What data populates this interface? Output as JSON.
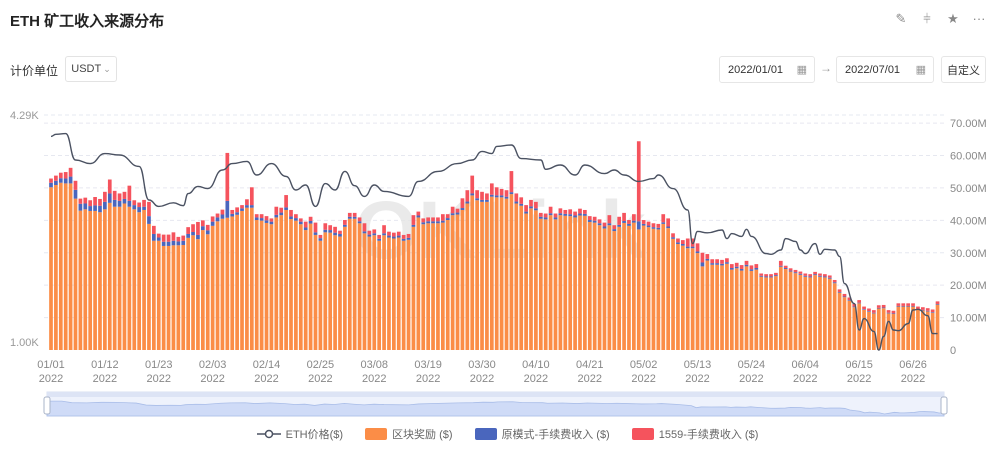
{
  "header": {
    "title": "ETH 矿工收入来源分布",
    "icons": [
      "edit-icon",
      "compare-icon",
      "star-icon",
      "more-icon"
    ]
  },
  "controls": {
    "unit_label": "计价单位",
    "unit_value": "USDT",
    "start_date": "2022/01/01",
    "end_date": "2022/07/01",
    "arrow": "→",
    "custom_label": "自定义"
  },
  "watermark": "OKLink",
  "colors": {
    "block_reward": "#fb8d47",
    "legacy_fee": "#4a66bd",
    "eip1559_fee": "#f5535d",
    "price_line": "#4b5262"
  },
  "chart_data": {
    "type": "bar",
    "stacked": true,
    "start_date": "2022-01-01",
    "left_axis": {
      "min": 1000,
      "max": 4290,
      "tick_labels": [
        "4.29K",
        "1.00K"
      ]
    },
    "right_axis": {
      "min": 0,
      "max": 70000000,
      "tick_labels": [
        "0",
        "10.00M",
        "20.00M",
        "30.00M",
        "40.00M",
        "50.00M",
        "60.00M",
        "70.00M"
      ]
    },
    "x_tick_labels": [
      {
        "md": "01/01",
        "y": "2022"
      },
      {
        "md": "01/12",
        "y": "2022"
      },
      {
        "md": "01/23",
        "y": "2022"
      },
      {
        "md": "02/03",
        "y": "2022"
      },
      {
        "md": "02/14",
        "y": "2022"
      },
      {
        "md": "02/25",
        "y": "2022"
      },
      {
        "md": "03/08",
        "y": "2022"
      },
      {
        "md": "03/19",
        "y": "2022"
      },
      {
        "md": "03/30",
        "y": "2022"
      },
      {
        "md": "04/10",
        "y": "2022"
      },
      {
        "md": "04/21",
        "y": "2022"
      },
      {
        "md": "05/02",
        "y": "2022"
      },
      {
        "md": "05/13",
        "y": "2022"
      },
      {
        "md": "05/24",
        "y": "2022"
      },
      {
        "md": "06/04",
        "y": "2022"
      },
      {
        "md": "06/15",
        "y": "2022"
      },
      {
        "md": "06/26",
        "y": "2022"
      }
    ],
    "grid": true,
    "legend_position": "bottom",
    "value_unit": "M USD",
    "series": [
      {
        "name": "区块奖励 ($)",
        "axis": "right",
        "values": [
          50.2,
          50.9,
          51.6,
          51.4,
          51.4,
          46.7,
          43.0,
          43.4,
          42.9,
          42.9,
          42.5,
          43.4,
          45.4,
          44.2,
          44.2,
          45.2,
          44.2,
          43.4,
          42.5,
          43.2,
          38.9,
          33.7,
          33.7,
          32.1,
          32.1,
          32.3,
          32.3,
          32.4,
          34.6,
          35.4,
          34.2,
          37.0,
          35.7,
          38.3,
          39.7,
          40.5,
          40.8,
          41.2,
          41.7,
          42.9,
          43.9,
          43.9,
          40.1,
          39.9,
          39.2,
          38.8,
          40.9,
          41.6,
          43.2,
          40.4,
          39.9,
          38.8,
          37.0,
          39.0,
          35.5,
          33.7,
          36.3,
          36.2,
          35.4,
          35.0,
          38.0,
          40.5,
          40.5,
          39.1,
          36.0,
          35.0,
          35.4,
          33.7,
          35.4,
          34.7,
          34.4,
          34.7,
          33.7,
          34.0,
          38.0,
          40.9,
          38.8,
          39.1,
          39.1,
          39.1,
          39.3,
          40.1,
          41.6,
          41.8,
          43.2,
          45.2,
          47.7,
          46.2,
          45.7,
          45.7,
          47.3,
          47.1,
          47.1,
          46.7,
          48.1,
          45.2,
          44.5,
          42.1,
          43.7,
          43.1,
          40.5,
          40.3,
          41.6,
          40.3,
          41.6,
          41.4,
          41.3,
          40.9,
          41.5,
          41.4,
          39.5,
          39.3,
          38.5,
          37.5,
          38.5,
          36.7,
          38.0,
          39.2,
          38.3,
          39.3,
          37.2,
          38.4,
          37.9,
          37.4,
          37.2,
          38.9,
          37.6,
          34.3,
          32.7,
          32.2,
          31.4,
          31.4,
          29.9,
          25.8,
          27.6,
          26.3,
          26.3,
          26.1,
          26.6,
          24.8,
          25.2,
          24.5,
          25.8,
          24.4,
          24.8,
          22.6,
          22.4,
          22.4,
          22.8,
          25.7,
          25.0,
          24.2,
          23.7,
          23.2,
          22.6,
          22.4,
          23.1,
          22.6,
          22.4,
          22.0,
          20.6,
          17.7,
          16.3,
          15.2,
          13.2,
          14.4,
          12.4,
          11.8,
          11.3,
          12.8,
          12.9,
          11.3,
          11.1,
          13.4,
          13.4,
          13.4,
          13.4,
          12.4,
          12.2,
          11.9,
          11.5,
          14.0
        ]
      },
      {
        "name": "原模式-手续费收入 ($)",
        "axis": "right",
        "values": [
          1.4,
          1.3,
          1.4,
          1.5,
          2.1,
          2.7,
          2.1,
          1.8,
          1.5,
          1.7,
          2.0,
          2.3,
          2.9,
          2.1,
          1.8,
          1.4,
          1.8,
          1.3,
          1.6,
          1.0,
          2.4,
          2.1,
          1.0,
          1.3,
          1.3,
          1.4,
          1.2,
          1.3,
          1.2,
          1.0,
          1.3,
          1.2,
          1.2,
          1.3,
          1.2,
          1.3,
          5.2,
          0.8,
          0.8,
          0.8,
          0.8,
          0.8,
          0.8,
          0.8,
          0.8,
          0.8,
          0.8,
          0.8,
          0.8,
          0.8,
          0.8,
          0.8,
          0.8,
          0.8,
          0.8,
          0.8,
          0.8,
          0.8,
          0.8,
          0.8,
          0.6,
          0.6,
          0.6,
          0.6,
          0.6,
          0.6,
          0.6,
          0.6,
          0.6,
          0.6,
          0.6,
          0.6,
          0.6,
          0.6,
          0.6,
          0.6,
          0.6,
          0.6,
          0.6,
          0.6,
          0.6,
          0.6,
          0.6,
          0.6,
          0.6,
          0.6,
          0.6,
          0.6,
          0.6,
          0.6,
          0.6,
          0.6,
          0.6,
          0.6,
          0.6,
          0.6,
          0.6,
          0.6,
          0.6,
          0.6,
          0.6,
          0.6,
          0.6,
          0.6,
          0.6,
          0.6,
          0.6,
          0.6,
          0.6,
          0.6,
          0.6,
          0.6,
          0.6,
          0.6,
          0.6,
          0.6,
          0.6,
          0.6,
          0.6,
          0.6,
          2.5,
          0.5,
          0.5,
          0.5,
          0.5,
          0.5,
          0.5,
          0.5,
          0.5,
          0.5,
          0.5,
          0.5,
          0.5,
          1.2,
          0.5,
          0.5,
          0.5,
          0.5,
          0.5,
          0.5,
          0.5,
          0.5,
          0.5,
          0.5,
          0.5,
          0.3,
          0.3,
          0.3,
          0.3,
          0.3,
          0.3,
          0.3,
          0.3,
          0.3,
          0.3,
          0.3,
          0.3,
          0.3,
          0.3,
          0.3,
          0.3,
          0.2,
          0.2,
          0.2,
          0.2,
          0.2,
          0.2,
          0.2,
          0.2,
          0.2,
          0.2,
          0.2,
          0.2,
          0.2,
          0.2,
          0.2,
          0.2,
          0.2,
          0.2,
          0.2,
          0.2,
          0.2
        ]
      },
      {
        "name": "1559-手续费收入 ($)",
        "axis": "right",
        "values": [
          1.3,
          1.6,
          1.7,
          2.0,
          2.7,
          2.8,
          1.6,
          1.8,
          1.8,
          2.6,
          2.1,
          3.1,
          4.3,
          2.8,
          2.3,
          2.2,
          4.7,
          1.5,
          1.4,
          2.1,
          4.4,
          2.5,
          1.2,
          2.2,
          2.2,
          2.6,
          1.4,
          1.6,
          2.1,
          2.4,
          4.0,
          1.8,
          1.7,
          1.6,
          1.2,
          1.5,
          14.8,
          1.2,
          1.5,
          1.0,
          1.8,
          5.5,
          1.0,
          1.2,
          1.3,
          1.0,
          2.5,
          1.5,
          3.8,
          2.0,
          1.2,
          1.0,
          1.8,
          1.3,
          3.0,
          1.0,
          2.0,
          1.5,
          1.8,
          1.0,
          1.5,
          1.2,
          1.2,
          1.2,
          2.5,
          1.2,
          1.2,
          1.2,
          2.5,
          1.2,
          1.2,
          1.2,
          1.2,
          1.2,
          3.0,
          1.2,
          1.2,
          1.2,
          1.2,
          1.2,
          2.0,
          1.2,
          2.0,
          1.2,
          3.0,
          3.5,
          5.5,
          2.5,
          2.5,
          2.0,
          3.5,
          2.5,
          2.0,
          2.0,
          6.5,
          2.5,
          2.0,
          2.0,
          2.0,
          2.0,
          1.2,
          1.2,
          2.0,
          1.2,
          1.5,
          1.2,
          1.5,
          1.2,
          1.5,
          1.2,
          1.2,
          1.2,
          1.2,
          1.2,
          2.5,
          1.2,
          2.5,
          2.5,
          1.2,
          2.0,
          24.7,
          1.2,
          1.2,
          1.2,
          1.2,
          2.5,
          2.5,
          1.2,
          1.2,
          1.2,
          2.5,
          2.5,
          2.5,
          3.0,
          1.5,
          1.2,
          1.2,
          1.2,
          1.2,
          1.2,
          1.2,
          1.2,
          1.2,
          1.2,
          1.2,
          0.7,
          0.7,
          0.7,
          0.7,
          1.5,
          0.7,
          0.7,
          0.7,
          0.7,
          0.7,
          0.7,
          0.7,
          0.7,
          0.7,
          0.7,
          0.7,
          0.8,
          0.8,
          0.8,
          0.8,
          0.8,
          0.8,
          0.8,
          0.8,
          0.8,
          0.8,
          0.8,
          0.8,
          0.8,
          0.8,
          0.8,
          0.8,
          0.8,
          0.8,
          0.8,
          0.8,
          0.8
        ]
      },
      {
        "name": "ETH价格($)",
        "type": "line",
        "axis": "left",
        "points": [
          [
            "2022-01-01",
            3990
          ],
          [
            "2022-01-02",
            4020
          ],
          [
            "2022-01-04",
            4030
          ],
          [
            "2022-01-06",
            3660
          ],
          [
            "2022-01-09",
            3610
          ],
          [
            "2022-01-12",
            3750
          ],
          [
            "2022-01-15",
            3730
          ],
          [
            "2022-01-19",
            3570
          ],
          [
            "2022-01-21",
            3100
          ],
          [
            "2022-01-23",
            3010
          ],
          [
            "2022-01-26",
            3060
          ],
          [
            "2022-01-28",
            3020
          ],
          [
            "2022-01-29",
            3190
          ],
          [
            "2022-01-31",
            3290
          ],
          [
            "2022-02-02",
            3260
          ],
          [
            "2022-02-05",
            3520
          ],
          [
            "2022-02-07",
            3610
          ],
          [
            "2022-02-10",
            3640
          ],
          [
            "2022-02-12",
            3450
          ],
          [
            "2022-02-15",
            3610
          ],
          [
            "2022-02-18",
            3430
          ],
          [
            "2022-02-20",
            3240
          ],
          [
            "2022-02-22",
            3310
          ],
          [
            "2022-02-24",
            3010
          ],
          [
            "2022-02-26",
            3330
          ],
          [
            "2022-02-28",
            3240
          ],
          [
            "2022-03-02",
            3500
          ],
          [
            "2022-03-04",
            3300
          ],
          [
            "2022-03-06",
            3150
          ],
          [
            "2022-03-08",
            3310
          ],
          [
            "2022-03-10",
            3220
          ],
          [
            "2022-03-15",
            3150
          ],
          [
            "2022-03-17",
            3360
          ],
          [
            "2022-03-21",
            3500
          ],
          [
            "2022-03-25",
            3610
          ],
          [
            "2022-03-28",
            3660
          ],
          [
            "2022-03-30",
            3780
          ],
          [
            "2022-04-01",
            3750
          ],
          [
            "2022-04-02",
            3850
          ],
          [
            "2022-04-05",
            3870
          ],
          [
            "2022-04-07",
            3680
          ],
          [
            "2022-04-11",
            3660
          ],
          [
            "2022-04-12",
            3530
          ],
          [
            "2022-04-15",
            3590
          ],
          [
            "2022-04-18",
            3450
          ],
          [
            "2022-04-20",
            3590
          ],
          [
            "2022-04-24",
            3470
          ],
          [
            "2022-04-26",
            3520
          ],
          [
            "2022-04-28",
            3450
          ],
          [
            "2022-05-01",
            3360
          ],
          [
            "2022-05-04",
            3400
          ],
          [
            "2022-05-05",
            3450
          ],
          [
            "2022-05-08",
            3260
          ],
          [
            "2022-05-11",
            2960
          ],
          [
            "2022-05-12",
            2490
          ],
          [
            "2022-05-13",
            2660
          ],
          [
            "2022-05-15",
            2640
          ],
          [
            "2022-05-18",
            2680
          ],
          [
            "2022-05-19",
            2560
          ],
          [
            "2022-05-20",
            2630
          ],
          [
            "2022-05-22",
            2590
          ],
          [
            "2022-05-23",
            2690
          ],
          [
            "2022-05-24",
            2590
          ],
          [
            "2022-05-27",
            2350
          ],
          [
            "2022-05-28",
            2340
          ],
          [
            "2022-05-30",
            2400
          ],
          [
            "2022-05-31",
            2560
          ],
          [
            "2022-06-02",
            2520
          ],
          [
            "2022-06-03",
            2400
          ],
          [
            "2022-06-04",
            2350
          ],
          [
            "2022-06-06",
            2490
          ],
          [
            "2022-06-07",
            2340
          ],
          [
            "2022-06-08",
            2410
          ],
          [
            "2022-06-10",
            2400
          ],
          [
            "2022-06-11",
            2310
          ],
          [
            "2022-06-12",
            1930
          ],
          [
            "2022-06-14",
            1650
          ],
          [
            "2022-06-15",
            1280
          ],
          [
            "2022-06-16",
            1440
          ],
          [
            "2022-06-18",
            1260
          ],
          [
            "2022-06-19",
            1000
          ],
          [
            "2022-06-20",
            1190
          ],
          [
            "2022-06-21",
            1400
          ],
          [
            "2022-06-22",
            1280
          ],
          [
            "2022-06-23",
            1270
          ],
          [
            "2022-06-25",
            1370
          ],
          [
            "2022-06-26",
            1560
          ],
          [
            "2022-06-27",
            1570
          ],
          [
            "2022-06-29",
            1480
          ],
          [
            "2022-06-30",
            1230
          ],
          [
            "2022-07-01",
            1230
          ]
        ]
      }
    ]
  },
  "legend": [
    {
      "label": "ETH价格($)",
      "kind": "line"
    },
    {
      "label": "区块奖励 ($)",
      "kind": "block_reward"
    },
    {
      "label": "原模式-手续费收入 ($)",
      "kind": "legacy_fee"
    },
    {
      "label": "1559-手续费收入 ($)",
      "kind": "eip1559_fee"
    }
  ]
}
